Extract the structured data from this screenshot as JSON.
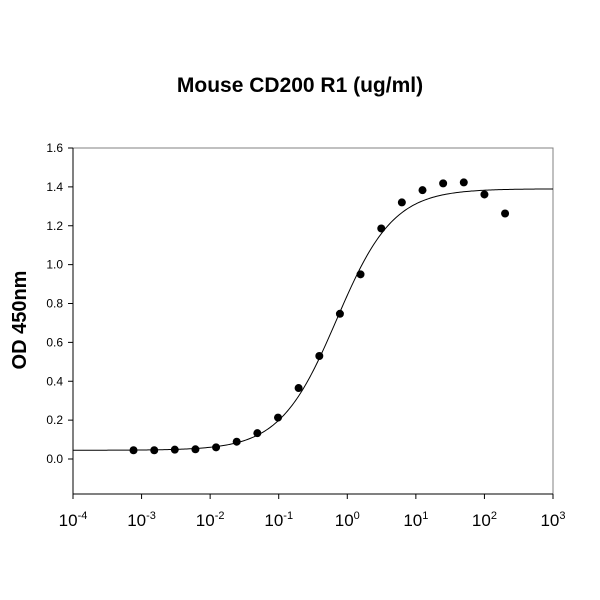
{
  "chart_data": {
    "type": "scatter",
    "title": "Mouse CD200 R1 (ug/ml)",
    "xlabel": "",
    "ylabel": "OD 450nm",
    "xscale": "log",
    "xlim": [
      0.0001,
      1000
    ],
    "ylim": [
      -0.18,
      1.6
    ],
    "x_tick_exponents": [
      "-4",
      "-3",
      "-2",
      "-1",
      "0",
      "1",
      "2",
      "3"
    ],
    "y_ticks": [
      "0.0",
      "0.2",
      "0.4",
      "0.6",
      "0.8",
      "1.0",
      "1.2",
      "1.4",
      "1.6"
    ],
    "grid": false,
    "points": {
      "x": [
        0.000763,
        0.00153,
        0.00305,
        0.0061,
        0.0122,
        0.0244,
        0.0488,
        0.0977,
        0.195,
        0.391,
        0.781,
        1.56,
        3.13,
        6.25,
        12.5,
        25,
        50,
        100,
        200
      ],
      "y": [
        0.045,
        0.045,
        0.048,
        0.05,
        0.06,
        0.089,
        0.133,
        0.213,
        0.365,
        0.53,
        0.747,
        0.95,
        1.186,
        1.32,
        1.383,
        1.418,
        1.423,
        1.361,
        1.263
      ]
    },
    "fit_curve": {
      "model": "4-parameter logistic",
      "bottom": 0.045,
      "top": 1.39,
      "ec50": 0.7,
      "hill": 1.05
    },
    "colors": {
      "points": "#000000",
      "curve": "#000000",
      "axes": "#000000",
      "frame": "#808080"
    }
  }
}
